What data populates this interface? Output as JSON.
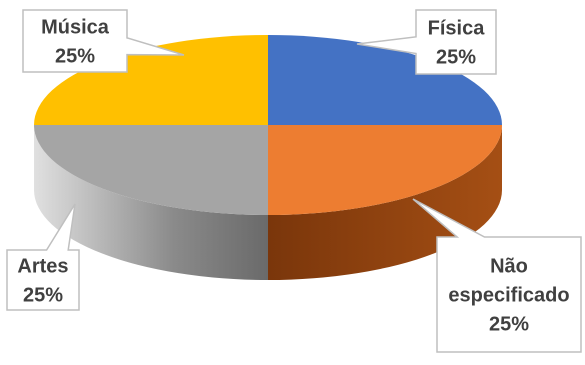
{
  "chart_data": {
    "type": "pie",
    "style": "3d",
    "legend": "none",
    "slices": [
      {
        "name": "Física",
        "value": 25,
        "label": "25%",
        "color": "#4472C4",
        "side_color": "#2F528F"
      },
      {
        "name": "Não especificado",
        "value": 25,
        "label": "25%",
        "color": "#ED7D31",
        "side_color": "#9E4A12"
      },
      {
        "name": "Artes",
        "value": 25,
        "label": "25%",
        "color": "#A5A5A5",
        "side_color": "#6E6E6E"
      },
      {
        "name": "Música",
        "value": 25,
        "label": "25%",
        "color": "#FFC000",
        "side_color": "#B38600"
      }
    ],
    "label_lines": [
      [
        "Física",
        "25%"
      ],
      [
        "Não",
        "especificado",
        "25%"
      ],
      [
        "Artes",
        "25%"
      ],
      [
        "Música",
        "25%"
      ]
    ]
  }
}
